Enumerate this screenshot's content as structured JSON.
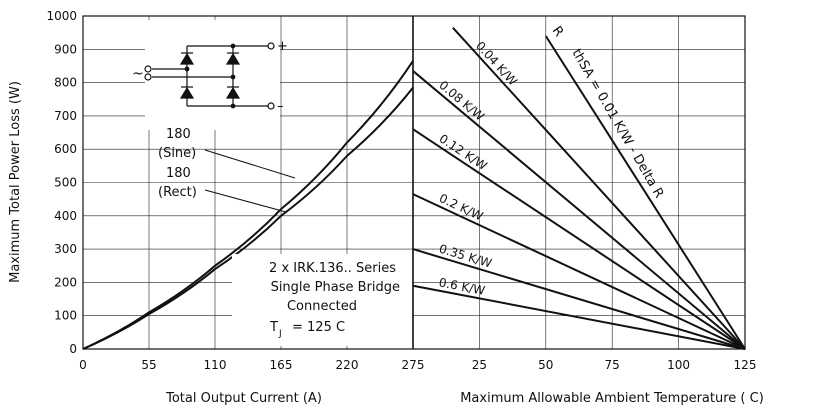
{
  "chart_data": [
    {
      "type": "line",
      "panel": "left",
      "xlabel": "Total Output Current (A)",
      "ylabel": "Maximum Total Power Loss (W)",
      "xlim": [
        0,
        275
      ],
      "ylim": [
        0,
        1000
      ],
      "xticks": [
        "0",
        "55",
        "110",
        "165",
        "220",
        "275"
      ],
      "yticks": [
        "0",
        "100",
        "200",
        "300",
        "400",
        "500",
        "600",
        "700",
        "800",
        "900",
        "1000"
      ],
      "grid": true,
      "series": [
        {
          "name": "180 (Sine)",
          "x": [
            0,
            55,
            110,
            165,
            220,
            275
          ],
          "y": [
            0,
            110,
            250,
            420,
            620,
            865
          ]
        },
        {
          "name": "180 (Rect)",
          "x": [
            0,
            55,
            110,
            165,
            220,
            275
          ],
          "y": [
            0,
            105,
            240,
            400,
            580,
            785
          ]
        }
      ],
      "annotations": {
        "sine_label": [
          "180",
          "(Sine)"
        ],
        "rect_label": [
          "180",
          "(Rect)"
        ],
        "device_note": [
          "2 x IRK.136.. Series",
          "Single Phase Bridge",
          "Connected"
        ],
        "tj_main": "T",
        "tj_sub": "J",
        "tj_value": "= 125  C",
        "schematic_plus": "+",
        "schematic_minus": "–",
        "schematic_ac": "~"
      }
    },
    {
      "type": "line",
      "panel": "right",
      "xlabel": "Maximum Allowable Ambient Temperature ( C)",
      "xlim": [
        25,
        125
      ],
      "xticks": [
        "25",
        "50",
        "75",
        "100",
        "125"
      ],
      "ylim": [
        0,
        1000
      ],
      "grid": true,
      "series": [
        {
          "name": "0.6 K/W",
          "x": [
            0,
            125
          ],
          "y": [
            190,
            0
          ]
        },
        {
          "name": "0.35 K/W",
          "x": [
            0,
            125
          ],
          "y": [
            300,
            0
          ]
        },
        {
          "name": "0.2 K/W",
          "x": [
            0,
            125
          ],
          "y": [
            465,
            0
          ]
        },
        {
          "name": "0.12 K/W",
          "x": [
            0,
            125
          ],
          "y": [
            660,
            0
          ]
        },
        {
          "name": "0.08 K/W",
          "x": [
            0,
            125
          ],
          "y": [
            835,
            0
          ]
        },
        {
          "name": "0.04 K/W",
          "x": [
            15,
            125
          ],
          "y": [
            965,
            0
          ]
        },
        {
          "name": "R thsA = 0.01 K/W - Delta R",
          "x": [
            50,
            125
          ],
          "y": [
            940,
            0
          ]
        }
      ],
      "annotations": {
        "r_main": "R",
        "r_sub": "thSA = 0.01 K/W - Delta R"
      }
    }
  ]
}
